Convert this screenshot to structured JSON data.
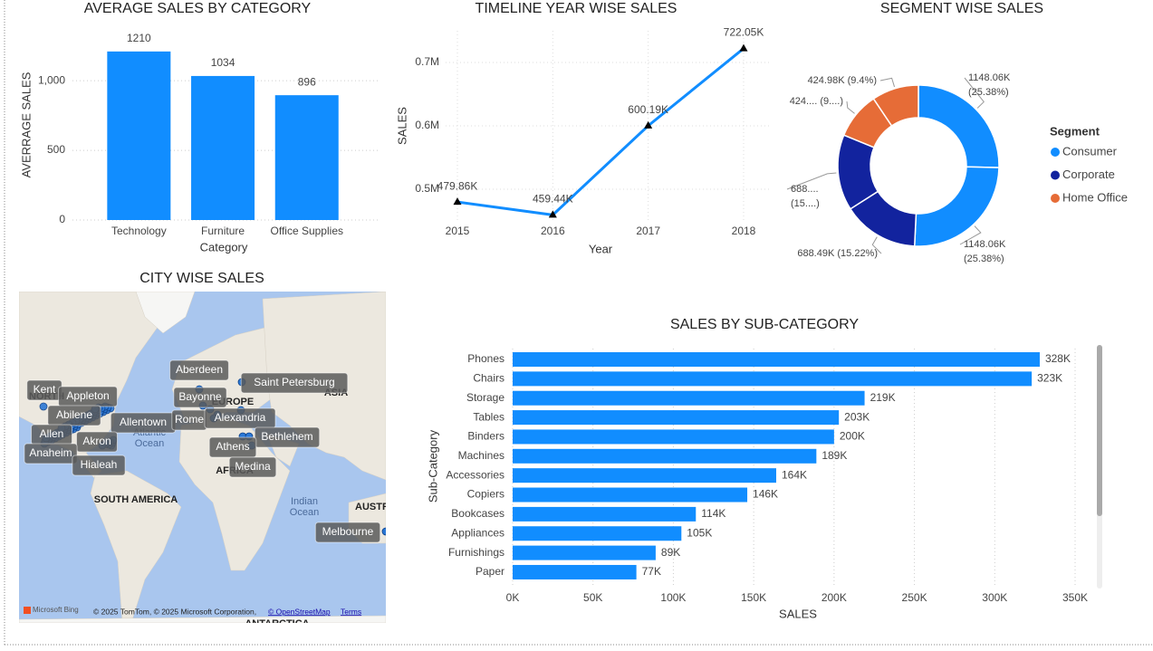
{
  "chart_data": [
    {
      "type": "bar",
      "title": "AVERAGE SALES BY CATEGORY",
      "x_label": "Category",
      "y_label": "AVERRAGE SALES",
      "categories": [
        "Technology",
        "Furniture",
        "Office Supplies"
      ],
      "values": [
        1210,
        1034,
        896
      ],
      "color": "#118DFF",
      "ylim": [
        0,
        1300
      ],
      "yticks": [
        0,
        500,
        {
          "value": 1000,
          "label": "1,000"
        }
      ],
      "grid": true
    },
    {
      "type": "line",
      "title": "TIMELINE YEAR WISE SALES",
      "x_label": "Year",
      "y_label": "SALES",
      "x": [
        2015,
        2016,
        2017,
        2018
      ],
      "values": [
        479860,
        459440,
        600190,
        722050
      ],
      "value_labels": [
        "479.86K",
        "459.44K",
        "600.19K",
        "722.05K"
      ],
      "color": "#118DFF",
      "marker_color": "#000000",
      "xlim": [
        2015,
        2018
      ],
      "xticks": [
        2015,
        2016,
        2017,
        2018
      ],
      "ylim": [
        450000,
        750000
      ],
      "yticks": [
        {
          "value": 500000,
          "label": "0.5M"
        },
        {
          "value": 600000,
          "label": "0.6M"
        },
        {
          "value": 700000,
          "label": "0.7M"
        }
      ],
      "grid": true
    },
    {
      "type": "donut",
      "title": "SEGMENT WISE SALES",
      "legend_title": "Segment",
      "legend": "right",
      "categories": [
        "Consumer",
        "Consumer",
        "Corporate",
        "Corporate",
        "Home Office",
        "Home Office"
      ],
      "values": [
        1148060,
        1148060,
        688490,
        688490,
        424980,
        424980
      ],
      "value_labels": [
        "1148.06K (25.38%)",
        "1148.06K (25.38%)",
        "688.49K (15.22%)",
        "688.... (15....)",
        "424.... (9....)",
        "424.98K (9.4%)"
      ],
      "colors": [
        "#118DFF",
        "#118DFF",
        "#12239E",
        "#12239E",
        "#E66C37",
        "#E66C37"
      ]
    },
    {
      "type": "hbar",
      "title": "SALES BY SUB-CATEGORY",
      "x_label": "SALES",
      "y_label": "Sub-Category",
      "categories": [
        "Phones",
        "Chairs",
        "Storage",
        "Tables",
        "Binders",
        "Machines",
        "Accessories",
        "Copiers",
        "Bookcases",
        "Appliances",
        "Furnishings",
        "Paper"
      ],
      "values": [
        328000,
        323000,
        219000,
        203000,
        200000,
        189000,
        164000,
        146000,
        114000,
        105000,
        89000,
        77000
      ],
      "value_labels": [
        "328K",
        "323K",
        "219K",
        "203K",
        "200K",
        "189K",
        "164K",
        "146K",
        "114K",
        "105K",
        "89K",
        "77K"
      ],
      "color": "#118DFF",
      "xlim": [
        0,
        350000
      ],
      "xticks": [
        {
          "value": 0,
          "label": "0K"
        },
        {
          "value": 50000,
          "label": "50K"
        },
        {
          "value": 100000,
          "label": "100K"
        },
        {
          "value": 150000,
          "label": "150K"
        },
        {
          "value": 200000,
          "label": "200K"
        },
        {
          "value": 250000,
          "label": "250K"
        },
        {
          "value": 300000,
          "label": "300K"
        },
        {
          "value": 350000,
          "label": "350K"
        }
      ],
      "grid": true
    }
  ],
  "map": {
    "title": "CITY WISE SALES",
    "cities": [
      "Kent",
      "Appleton",
      "Abilene",
      "Allentown",
      "Allen",
      "Akron",
      "Anaheim",
      "Hialeah",
      "Aberdeen",
      "Saint Petersburg",
      "Bayonne",
      "Rome",
      "Alexandria",
      "Bethlehem",
      "Athens",
      "Medina",
      "Melbourne"
    ],
    "regions": [
      "NORTH",
      "EUROPE",
      "ASIA",
      "AFRICA",
      "SOUTH AMERICA",
      "Atlantic Ocean",
      "Indian Ocean",
      "AUSTR",
      "ANTARCTICA"
    ],
    "attribution": {
      "logo": "Microsoft Bing",
      "copyright": "© 2025 TomTom, © 2025 Microsoft Corporation,",
      "osm": "© OpenStreetMap",
      "terms": "Terms"
    }
  }
}
